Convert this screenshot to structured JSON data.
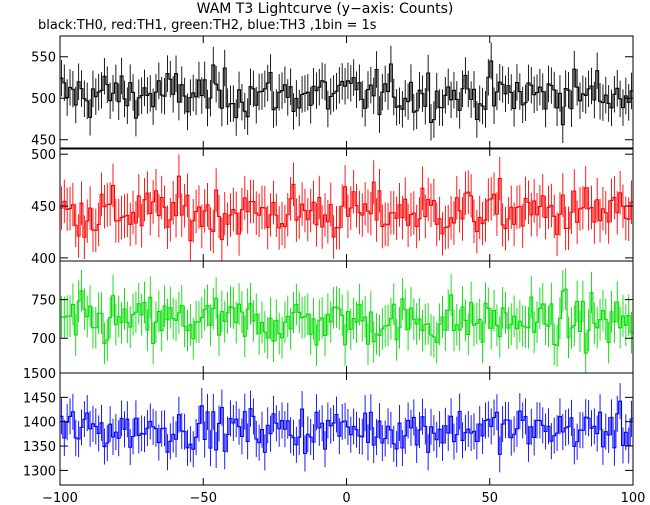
{
  "chart_data": {
    "type": "line",
    "title": "WAM T3 Lightcurve (y−axis: Counts)",
    "subtitle": "black:TH0, red:TH1, green:TH2, blue:TH3 ,1bin = 1s",
    "x_range": [
      -100,
      100
    ],
    "x_ticks": [
      -100,
      -50,
      0,
      50,
      100
    ],
    "bin_seconds": 1,
    "panels": [
      {
        "name": "TH0",
        "color": "#000000",
        "ylim": [
          440,
          575
        ],
        "yticks": [
          450,
          500,
          550
        ],
        "mean": 505,
        "noise": 24,
        "err": 22
      },
      {
        "name": "TH1",
        "color": "#ff0000",
        "ylim": [
          397,
          505
        ],
        "yticks": [
          400,
          450,
          500
        ],
        "mean": 444,
        "noise": 21,
        "err": 21
      },
      {
        "name": "TH2",
        "color": "#00dd00",
        "ylim": [
          655,
          800
        ],
        "yticks": [
          700,
          750
        ],
        "mean": 722,
        "noise": 27,
        "err": 27
      },
      {
        "name": "TH3",
        "color": "#0000ff",
        "ylim": [
          1270,
          1500
        ],
        "yticks": [
          1300,
          1350,
          1400,
          1450,
          1500
        ],
        "mean": 1385,
        "noise": 37,
        "err": 37
      }
    ]
  }
}
